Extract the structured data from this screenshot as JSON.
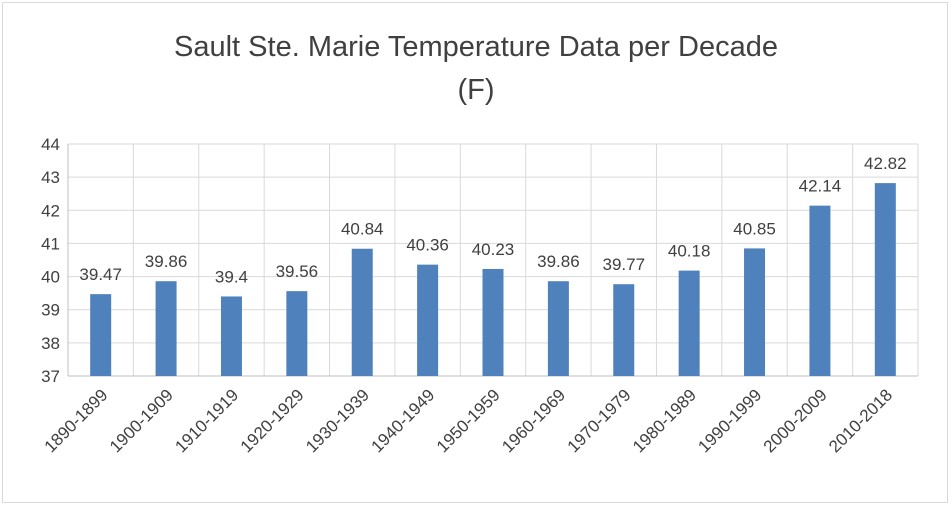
{
  "chart_data": {
    "type": "bar",
    "title_line1": "Sault Ste. Marie Temperature Data per Decade",
    "title_line2": "(F)",
    "categories": [
      "1890-1899",
      "1900-1909",
      "1910-1919",
      "1920-1929",
      "1930-1939",
      "1940-1949",
      "1950-1959",
      "1960-1969",
      "1970-1979",
      "1980-1989",
      "1990-1999",
      "2000-2009",
      "2010-2018"
    ],
    "values": [
      39.47,
      39.86,
      39.4,
      39.56,
      40.84,
      40.36,
      40.23,
      39.86,
      39.77,
      40.18,
      40.85,
      42.14,
      42.82
    ],
    "data_labels": [
      "39.47",
      "39.86",
      "39.4",
      "39.56",
      "40.84",
      "40.36",
      "40.23",
      "39.86",
      "39.77",
      "40.18",
      "40.85",
      "42.14",
      "42.82"
    ],
    "ylim": [
      37,
      44
    ],
    "yticks": [
      "37",
      "38",
      "39",
      "40",
      "41",
      "42",
      "43",
      "44"
    ],
    "xlabel": "",
    "ylabel": "",
    "grid": true,
    "bar_color": "#4f81bd",
    "grid_color": "#d9d9d9",
    "axis_color": "#bfbfbf"
  }
}
